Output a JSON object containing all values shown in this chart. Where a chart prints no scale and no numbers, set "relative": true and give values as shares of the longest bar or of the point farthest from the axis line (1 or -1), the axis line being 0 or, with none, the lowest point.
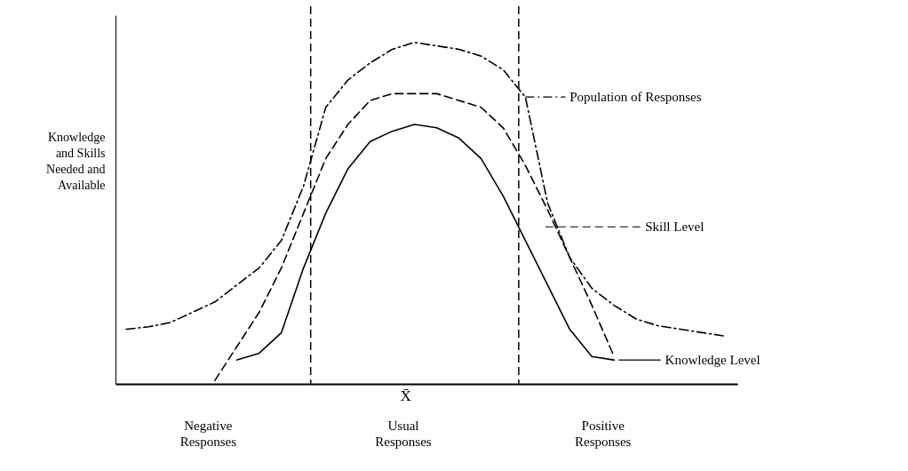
{
  "chart_data": {
    "type": "line",
    "relative": true,
    "legend": "right",
    "ylabel": "Knowledge and Skills Needed and Available",
    "categories": [
      null,
      null,
      null,
      null,
      null,
      null,
      null,
      null,
      null,
      null,
      null,
      null,
      null,
      null,
      null,
      null,
      null,
      null,
      null,
      null,
      null,
      null,
      null,
      null,
      null,
      null,
      null,
      null
    ],
    "series": [
      {
        "name": "Population of Responses",
        "color": "#000000",
        "line_style": "dashdot",
        "values": [
          0.16,
          0.167,
          0.18,
          0.21,
          0.24,
          0.29,
          0.34,
          0.42,
          0.58,
          0.81,
          0.89,
          0.94,
          0.98,
          1,
          0.99,
          0.98,
          0.96,
          0.92,
          0.84,
          0.53,
          0.37,
          0.28,
          0.23,
          0.19,
          0.17,
          0.16,
          0.15,
          0.14
        ]
      },
      {
        "name": "Skill Level",
        "color": "#000000",
        "line_style": "dashed",
        "values": [
          null,
          null,
          null,
          null,
          0.01,
          0.11,
          0.21,
          0.34,
          0.5,
          0.66,
          0.76,
          0.83,
          0.85,
          0.85,
          0.85,
          0.83,
          0.81,
          0.75,
          0.64,
          0.51,
          0.37,
          0.23,
          0.08,
          null,
          null,
          null,
          null,
          null
        ]
      },
      {
        "name": "Knowledge Level",
        "color": "#000000",
        "line_style": "solid",
        "values": [
          null,
          null,
          null,
          null,
          null,
          0.07,
          0.09,
          0.15,
          0.34,
          0.5,
          0.63,
          0.71,
          0.74,
          0.76,
          0.75,
          0.72,
          0.66,
          0.55,
          0.42,
          0.29,
          0.16,
          0.08,
          0.07,
          null,
          null,
          null,
          null,
          null
        ]
      }
    ],
    "ref_lines": [
      {
        "axis": "x",
        "value": null,
        "line_style": "dashed"
      },
      {
        "axis": "x",
        "value": null,
        "line_style": "dashed"
      }
    ],
    "annotations": [
      "X̄",
      "Negative Responses",
      "Usual Responses",
      "Positive Responses"
    ]
  }
}
